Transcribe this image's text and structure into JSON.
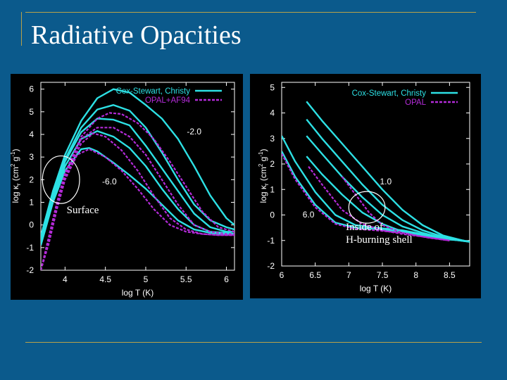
{
  "slide": {
    "title": "Radiative Opacities"
  },
  "colors": {
    "background": "#0b5a8c",
    "rule": "#b8a24a",
    "cox": "#2de0e4",
    "opal": "#b32bd8",
    "panel": "#000000"
  },
  "chart_data": [
    {
      "type": "line",
      "xlabel": "log T (K)",
      "ylabel_main": "log κ",
      "ylabel_sub": "r",
      "ylabel_rest": " (cm",
      "ylabel_sup1": "2",
      "ylabel_mid": " g",
      "ylabel_sup2": "-1",
      "ylabel_end": ")",
      "xlim": [
        3.7,
        6.1
      ],
      "ylim": [
        -2,
        6.3
      ],
      "xticks": [
        "4",
        "4.5",
        "5",
        "5.5",
        "6"
      ],
      "xtick_values": [
        4,
        4.5,
        5,
        5.5,
        6
      ],
      "yticks": [
        "-2",
        "-1",
        "0",
        "1",
        "2",
        "3",
        "4",
        "5",
        "6"
      ],
      "ytick_values": [
        -2,
        -1,
        0,
        1,
        2,
        3,
        4,
        5,
        6
      ],
      "legend": [
        "Cox-Stewart, Christy",
        "OPAL+AF94"
      ],
      "annotations": [
        {
          "text": "-2.0",
          "x": 5.6,
          "y": 4.0
        },
        {
          "text": "-6.0",
          "x": 4.55,
          "y": 1.8
        }
      ],
      "callout": {
        "label": "Surface",
        "x": 3.95,
        "y": 2.0,
        "rx": 0.23,
        "ry": 1.05
      },
      "series": [
        {
          "name": "Cox-Stewart, Christy",
          "style": "solid",
          "x": [
            3.7,
            3.85,
            4.0,
            4.2,
            4.4,
            4.6,
            4.8,
            5.0,
            5.2,
            5.4,
            5.6,
            5.8,
            6.0,
            6.1
          ],
          "y": [
            -0.5,
            1.5,
            3.1,
            4.6,
            5.6,
            6.0,
            5.85,
            5.3,
            4.7,
            3.8,
            2.6,
            1.3,
            0.3,
            0.0
          ]
        },
        {
          "name": "Cox-Stewart, Christy",
          "style": "solid",
          "x": [
            3.7,
            3.85,
            4.0,
            4.2,
            4.4,
            4.6,
            4.8,
            5.0,
            5.2,
            5.4,
            5.6,
            5.8,
            6.0,
            6.1
          ],
          "y": [
            -0.6,
            1.3,
            2.9,
            4.3,
            5.1,
            5.3,
            5.05,
            4.3,
            3.2,
            2.0,
            0.9,
            0.2,
            -0.1,
            -0.2
          ]
        },
        {
          "name": "Cox-Stewart, Christy",
          "style": "solid",
          "x": [
            3.7,
            3.85,
            4.0,
            4.2,
            4.4,
            4.6,
            4.8,
            5.0,
            5.2,
            5.4,
            5.6,
            5.8,
            6.0,
            6.1
          ],
          "y": [
            -0.7,
            1.2,
            2.8,
            4.1,
            4.7,
            4.65,
            4.4,
            3.5,
            2.5,
            1.5,
            0.5,
            -0.1,
            -0.3,
            -0.3
          ]
        },
        {
          "name": "Cox-Stewart, Christy",
          "style": "solid",
          "x": [
            3.7,
            3.85,
            4.0,
            4.2,
            4.4,
            4.6,
            4.8,
            5.0,
            5.2,
            5.4,
            5.6,
            5.8,
            6.0,
            6.1
          ],
          "y": [
            -0.8,
            1.1,
            2.6,
            3.8,
            4.15,
            3.9,
            3.4,
            2.6,
            1.6,
            0.7,
            0.0,
            -0.3,
            -0.35,
            -0.4
          ]
        },
        {
          "name": "Cox-Stewart, Christy",
          "style": "solid",
          "x": [
            3.7,
            3.85,
            4.0,
            4.2,
            4.3,
            4.4,
            4.6,
            4.8,
            5.0,
            5.2,
            5.4,
            5.6,
            5.8,
            6.0,
            6.1
          ],
          "y": [
            -0.9,
            1.0,
            2.4,
            3.35,
            3.4,
            3.25,
            2.75,
            2.2,
            1.6,
            0.9,
            0.2,
            -0.2,
            -0.35,
            -0.4,
            -0.4
          ]
        },
        {
          "name": "OPAL+AF94",
          "style": "dashed",
          "x": [
            3.7,
            3.8,
            3.9,
            4.0,
            4.2,
            4.4,
            4.55,
            4.7,
            4.9,
            5.1,
            5.3,
            5.5,
            5.7,
            5.9,
            6.1
          ],
          "y": [
            -2.0,
            -0.5,
            1.0,
            2.3,
            3.9,
            4.7,
            4.95,
            4.9,
            4.5,
            3.8,
            2.8,
            1.7,
            0.6,
            -0.1,
            -0.3
          ]
        },
        {
          "name": "OPAL+AF94",
          "style": "dashed",
          "x": [
            3.7,
            3.8,
            3.9,
            4.0,
            4.2,
            4.4,
            4.6,
            4.8,
            5.0,
            5.2,
            5.4,
            5.6,
            5.8,
            6.0,
            6.1
          ],
          "y": [
            -2.0,
            -0.6,
            0.9,
            2.2,
            3.8,
            4.3,
            4.3,
            3.9,
            3.1,
            2.0,
            0.9,
            0.0,
            -0.3,
            -0.4,
            -0.4
          ]
        },
        {
          "name": "OPAL+AF94",
          "style": "dashed",
          "x": [
            3.7,
            3.8,
            3.9,
            4.0,
            4.2,
            4.35,
            4.5,
            4.7,
            4.9,
            5.1,
            5.3,
            5.5,
            5.7,
            5.9,
            6.1
          ],
          "y": [
            -2.0,
            -0.7,
            0.8,
            2.1,
            3.6,
            4.05,
            3.9,
            3.3,
            2.4,
            1.3,
            0.3,
            -0.2,
            -0.4,
            -0.45,
            -0.45
          ]
        },
        {
          "name": "OPAL+AF94",
          "style": "dashed",
          "x": [
            3.7,
            3.8,
            3.9,
            4.0,
            4.15,
            4.3,
            4.5,
            4.7,
            4.9,
            5.1,
            5.3,
            5.5,
            5.7,
            5.9,
            6.1
          ],
          "y": [
            -2.0,
            -0.8,
            0.7,
            2.0,
            3.1,
            3.35,
            3.0,
            2.4,
            1.6,
            0.7,
            0.0,
            -0.3,
            -0.4,
            -0.45,
            -0.45
          ]
        }
      ]
    },
    {
      "type": "line",
      "xlabel": "log T (K)",
      "ylabel_main": "log κ",
      "ylabel_sub": "r",
      "ylabel_rest": " (cm",
      "ylabel_sup1": "2",
      "ylabel_mid": " g",
      "ylabel_sup2": "-1",
      "ylabel_end": ")",
      "xlim": [
        6.0,
        8.8
      ],
      "ylim": [
        -2,
        5.2
      ],
      "xticks": [
        "6",
        "6.5",
        "7",
        "7.5",
        "8",
        "8.5"
      ],
      "xtick_values": [
        6,
        6.5,
        7,
        7.5,
        8,
        8.5
      ],
      "yticks": [
        "-2",
        "-1",
        "0",
        "1",
        "2",
        "3",
        "4",
        "5"
      ],
      "ytick_values": [
        -2,
        -1,
        0,
        1,
        2,
        3,
        4,
        5
      ],
      "legend": [
        "Cox-Stewart, Christy",
        "OPAL"
      ],
      "annotations": [
        {
          "text": "1.0",
          "x": 7.55,
          "y": 1.2
        },
        {
          "text": "6.0",
          "x": 6.4,
          "y": -0.1
        }
      ],
      "callout": {
        "label": "Inside of",
        "label2": "H-burning shell",
        "x": 7.27,
        "y": 0.3,
        "rx": 0.27,
        "ry": 0.62
      },
      "series": [
        {
          "name": "Cox-Stewart, Christy",
          "style": "solid",
          "x": [
            6.37,
            6.6,
            6.9,
            7.2,
            7.5,
            7.8,
            8.1,
            8.4,
            8.7,
            8.8
          ],
          "y": [
            4.45,
            3.7,
            2.8,
            1.9,
            1.0,
            0.2,
            -0.4,
            -0.8,
            -1.0,
            -1.05
          ]
        },
        {
          "name": "Cox-Stewart, Christy",
          "style": "solid",
          "x": [
            6.37,
            6.6,
            6.9,
            7.2,
            7.5,
            7.8,
            8.1,
            8.4,
            8.7,
            8.8
          ],
          "y": [
            3.75,
            3.0,
            2.1,
            1.2,
            0.4,
            -0.2,
            -0.6,
            -0.85,
            -1.0,
            -1.05
          ]
        },
        {
          "name": "Cox-Stewart, Christy",
          "style": "solid",
          "x": [
            6.37,
            6.6,
            6.9,
            7.2,
            7.5,
            7.8,
            8.1,
            8.4,
            8.7,
            8.8
          ],
          "y": [
            3.1,
            2.4,
            1.5,
            0.7,
            0.0,
            -0.45,
            -0.7,
            -0.9,
            -1.0,
            -1.05
          ]
        },
        {
          "name": "Cox-Stewart, Christy",
          "style": "solid",
          "x": [
            6.37,
            6.6,
            6.9,
            7.2,
            7.5,
            7.8,
            8.1,
            8.4,
            8.7,
            8.8
          ],
          "y": [
            2.3,
            1.6,
            0.8,
            0.1,
            -0.35,
            -0.65,
            -0.8,
            -0.95,
            -1.0,
            -1.05
          ]
        },
        {
          "name": "Cox-Stewart, Christy",
          "style": "solid",
          "x": [
            6.0,
            6.2,
            6.5,
            6.8,
            7.1,
            7.4,
            7.8,
            8.2,
            8.5,
            8.8
          ],
          "y": [
            3.1,
            2.1,
            0.9,
            0.0,
            -0.4,
            -0.5,
            -0.6,
            -0.8,
            -0.95,
            -1.05
          ]
        },
        {
          "name": "Cox-Stewart, Christy",
          "style": "solid",
          "x": [
            6.0,
            6.2,
            6.5,
            6.8,
            7.1,
            7.4,
            7.8,
            8.2,
            8.5,
            8.8
          ],
          "y": [
            2.5,
            1.5,
            0.4,
            -0.3,
            -0.5,
            -0.55,
            -0.65,
            -0.85,
            -0.95,
            -1.05
          ]
        },
        {
          "name": "OPAL",
          "style": "dashed",
          "x": [
            6.0,
            6.2,
            6.5,
            6.8,
            7.1,
            7.4,
            7.8,
            8.2,
            8.5
          ],
          "y": [
            2.4,
            1.4,
            0.3,
            -0.35,
            -0.55,
            -0.6,
            -0.7,
            -0.9,
            -1.0
          ]
        },
        {
          "name": "OPAL",
          "style": "dashed",
          "x": [
            6.4,
            6.6,
            6.9,
            7.2,
            7.5,
            7.8,
            8.1,
            8.5
          ],
          "y": [
            1.9,
            1.2,
            0.2,
            -0.35,
            -0.6,
            -0.75,
            -0.85,
            -1.0
          ]
        },
        {
          "name": "OPAL",
          "style": "dashed",
          "x": [
            6.9,
            7.1,
            7.3,
            7.5,
            7.8,
            8.1,
            8.5
          ],
          "y": [
            1.5,
            0.8,
            0.1,
            -0.4,
            -0.7,
            -0.85,
            -1.0
          ]
        }
      ]
    }
  ]
}
